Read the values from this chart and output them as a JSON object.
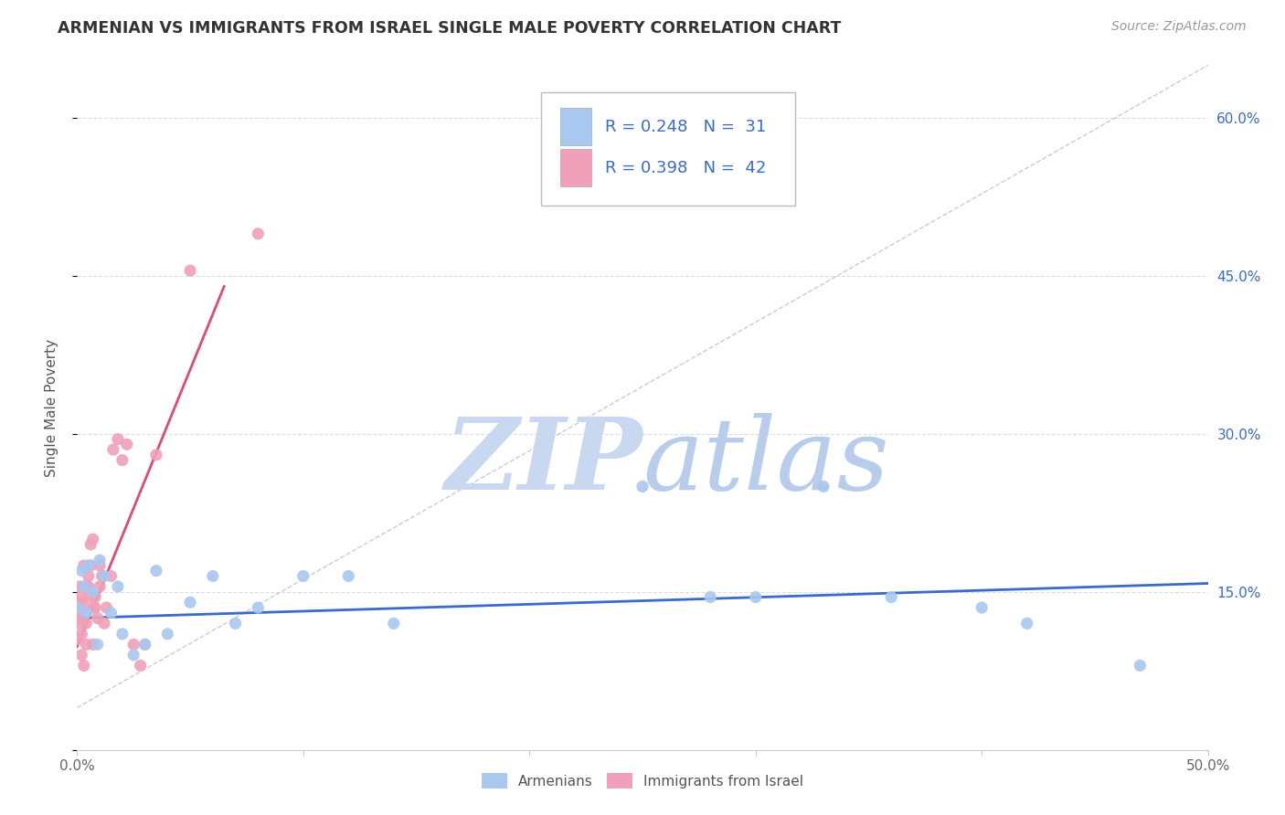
{
  "title": "ARMENIAN VS IMMIGRANTS FROM ISRAEL SINGLE MALE POVERTY CORRELATION CHART",
  "source": "Source: ZipAtlas.com",
  "ylabel": "Single Male Poverty",
  "x_min": 0.0,
  "x_max": 0.5,
  "y_min": 0.0,
  "y_max": 0.65,
  "x_tick_positions": [
    0.0,
    0.1,
    0.2,
    0.3,
    0.4,
    0.5
  ],
  "x_tick_labels": [
    "0.0%",
    "",
    "",
    "",
    "",
    "50.0%"
  ],
  "y_tick_positions": [
    0.0,
    0.15,
    0.3,
    0.45,
    0.6
  ],
  "y_tick_labels_right": [
    "",
    "15.0%",
    "30.0%",
    "45.0%",
    "60.0%"
  ],
  "armenians_x": [
    0.0,
    0.002,
    0.003,
    0.004,
    0.005,
    0.007,
    0.009,
    0.01,
    0.012,
    0.015,
    0.018,
    0.02,
    0.025,
    0.03,
    0.035,
    0.04,
    0.05,
    0.06,
    0.07,
    0.08,
    0.1,
    0.12,
    0.14,
    0.25,
    0.28,
    0.3,
    0.33,
    0.36,
    0.4,
    0.42,
    0.47
  ],
  "armenians_y": [
    0.135,
    0.17,
    0.155,
    0.13,
    0.175,
    0.15,
    0.1,
    0.18,
    0.165,
    0.13,
    0.155,
    0.11,
    0.09,
    0.1,
    0.17,
    0.11,
    0.14,
    0.165,
    0.12,
    0.135,
    0.165,
    0.165,
    0.12,
    0.25,
    0.145,
    0.145,
    0.25,
    0.145,
    0.135,
    0.12,
    0.08
  ],
  "israel_x": [
    0.0,
    0.0,
    0.0,
    0.001,
    0.001,
    0.001,
    0.002,
    0.002,
    0.002,
    0.003,
    0.003,
    0.003,
    0.003,
    0.004,
    0.004,
    0.005,
    0.005,
    0.005,
    0.006,
    0.006,
    0.007,
    0.007,
    0.007,
    0.008,
    0.008,
    0.009,
    0.01,
    0.01,
    0.011,
    0.012,
    0.013,
    0.015,
    0.016,
    0.018,
    0.02,
    0.022,
    0.025,
    0.028,
    0.03,
    0.035,
    0.05,
    0.08
  ],
  "israel_y": [
    0.125,
    0.14,
    0.105,
    0.13,
    0.12,
    0.155,
    0.09,
    0.11,
    0.145,
    0.08,
    0.135,
    0.155,
    0.175,
    0.1,
    0.12,
    0.155,
    0.145,
    0.165,
    0.175,
    0.195,
    0.2,
    0.1,
    0.135,
    0.145,
    0.135,
    0.125,
    0.155,
    0.175,
    0.165,
    0.12,
    0.135,
    0.165,
    0.285,
    0.295,
    0.275,
    0.29,
    0.1,
    0.08,
    0.1,
    0.28,
    0.455,
    0.49
  ],
  "armenian_R": 0.248,
  "armenian_N": 31,
  "israel_R": 0.398,
  "israel_N": 42,
  "armenian_color": "#a8c8f0",
  "israel_color": "#f0a0b8",
  "armenian_line_color": "#3a6bc8",
  "israel_line_color": "#e04878",
  "background_color": "#ffffff",
  "grid_color": "#dddddd",
  "watermark_zip_color": "#c8d8f0",
  "watermark_atlas_color": "#b8ccec"
}
